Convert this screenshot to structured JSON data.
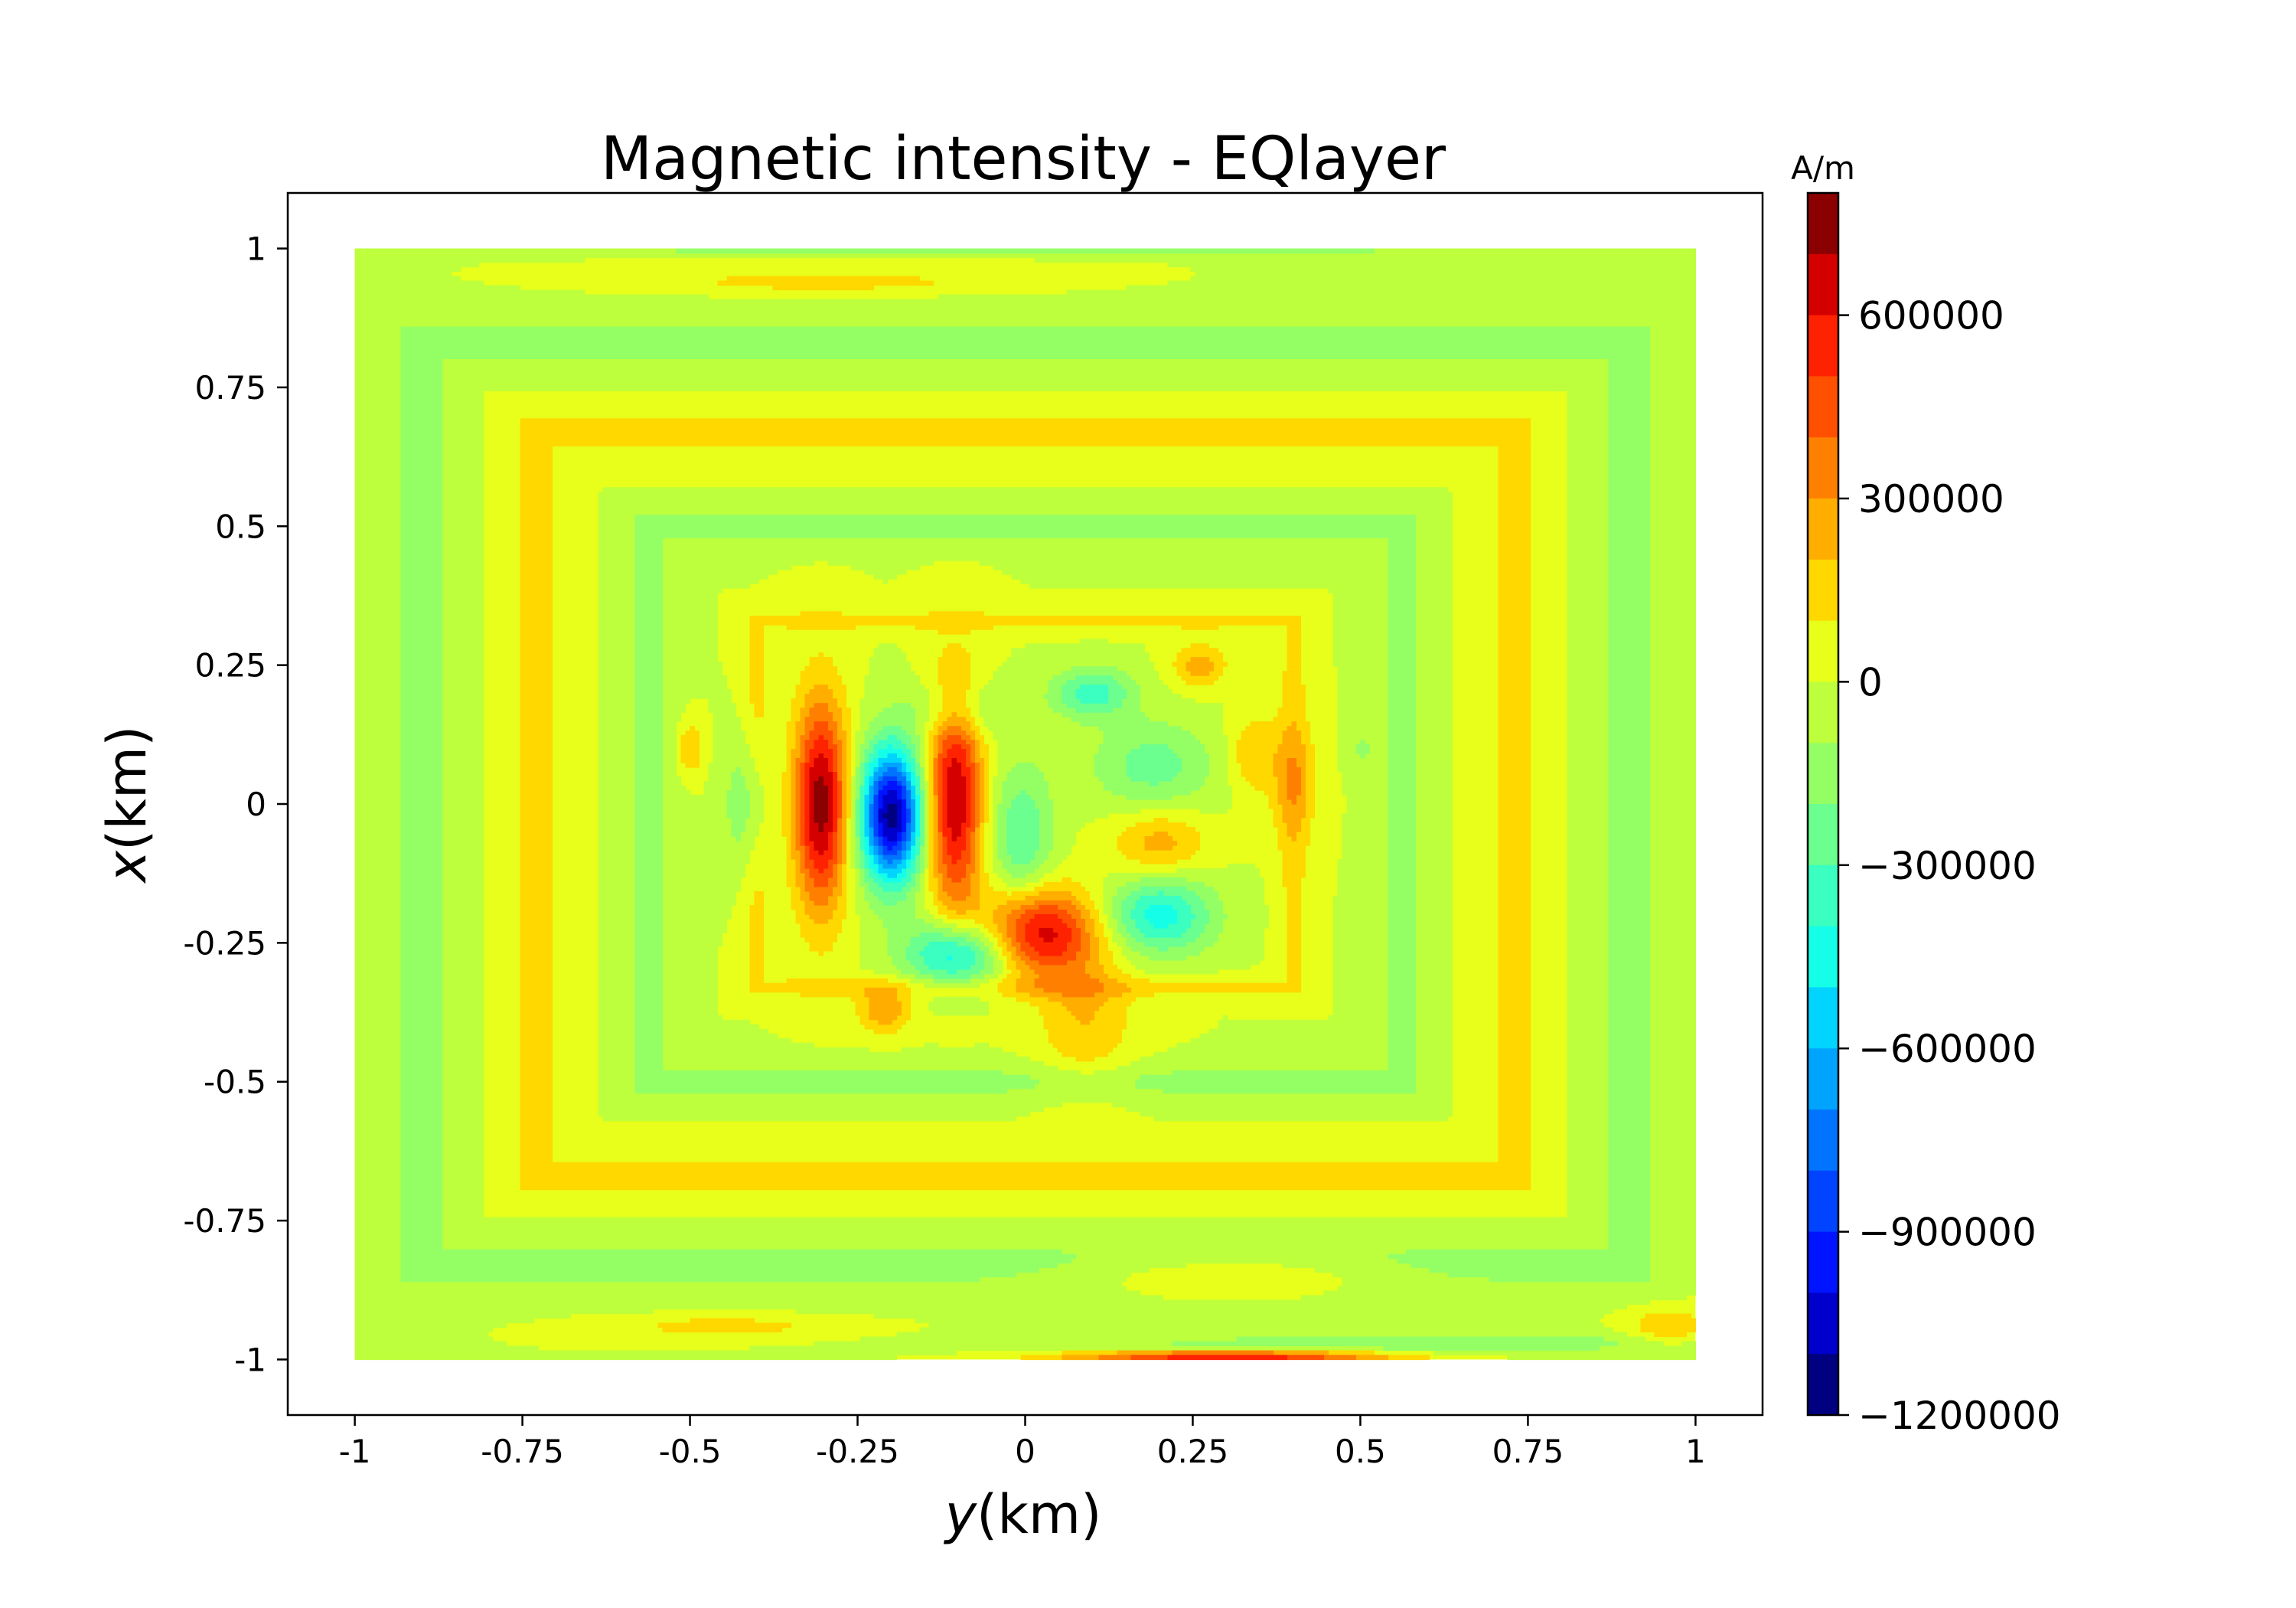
{
  "chart_data": {
    "type": "heatmap",
    "title": "Magnetic intensity - EQlayer",
    "xlabel": {
      "italic": "y",
      "rest": "(km)"
    },
    "ylabel": {
      "italic": "x",
      "rest": "(km)"
    },
    "xlim": [
      -1.1,
      1.1
    ],
    "ylim": [
      -1.1,
      1.1
    ],
    "x_ticks": [
      -1,
      -0.75,
      -0.5,
      -0.25,
      0,
      0.25,
      0.5,
      0.75,
      1
    ],
    "x_tick_labels": [
      "-1",
      "-0.75",
      "-0.5",
      "-0.25",
      "0",
      "0.25",
      "0.5",
      "0.75",
      "1"
    ],
    "y_ticks": [
      1,
      0.75,
      0.5,
      0.25,
      0,
      -0.25,
      -0.5,
      -0.75,
      -1
    ],
    "y_tick_labels": [
      "1",
      "0.75",
      "0.5",
      "0.25",
      "0",
      "-0.25",
      "-0.5",
      "-0.75",
      "-1"
    ],
    "data_extent": {
      "y": [
        -1,
        1
      ],
      "x": [
        -1,
        1
      ]
    },
    "background_level": 0,
    "colorbar": {
      "unit": "A/m",
      "range": [
        -1200000,
        800000
      ],
      "tick_values": [
        600000,
        300000,
        0,
        -300000,
        -600000,
        -900000,
        -1200000
      ],
      "tick_labels": [
        "600000",
        "300000",
        "0",
        "−300000",
        "−600000",
        "−900000",
        "−1200000"
      ],
      "levels": [
        {
          "from": 700000,
          "to": 800000,
          "color": "#8b0000"
        },
        {
          "from": 600000,
          "to": 700000,
          "color": "#d40000"
        },
        {
          "from": 500000,
          "to": 600000,
          "color": "#ff2200"
        },
        {
          "from": 400000,
          "to": 500000,
          "color": "#ff5000"
        },
        {
          "from": 300000,
          "to": 400000,
          "color": "#ff8000"
        },
        {
          "from": 200000,
          "to": 300000,
          "color": "#ffae00"
        },
        {
          "from": 100000,
          "to": 200000,
          "color": "#ffd800"
        },
        {
          "from": 0,
          "to": 100000,
          "color": "#e7ff1a"
        },
        {
          "from": -100000,
          "to": 0,
          "color": "#bdff3c"
        },
        {
          "from": -200000,
          "to": -100000,
          "color": "#94ff65"
        },
        {
          "from": -300000,
          "to": -200000,
          "color": "#6aff8e"
        },
        {
          "from": -400000,
          "to": -300000,
          "color": "#3affc0"
        },
        {
          "from": -500000,
          "to": -400000,
          "color": "#15ffe8"
        },
        {
          "from": -600000,
          "to": -500000,
          "color": "#00d4ff"
        },
        {
          "from": -700000,
          "to": -600000,
          "color": "#00a4ff"
        },
        {
          "from": -800000,
          "to": -700000,
          "color": "#0074ff"
        },
        {
          "from": -900000,
          "to": -800000,
          "color": "#0044ff"
        },
        {
          "from": -1000000,
          "to": -900000,
          "color": "#0014ff"
        },
        {
          "from": -1100000,
          "to": -1000000,
          "color": "#0000cd"
        },
        {
          "from": -1200000,
          "to": -1100000,
          "color": "#000080"
        }
      ]
    },
    "anomalies": [
      {
        "y": -0.305,
        "x": 0.0,
        "ry": 0.04,
        "rx": 0.19,
        "value": 750000
      },
      {
        "y": -0.2,
        "x": -0.02,
        "ry": 0.045,
        "rx": 0.12,
        "value": -1150000
      },
      {
        "y": -0.105,
        "x": 0.01,
        "ry": 0.04,
        "rx": 0.2,
        "value": 700000
      },
      {
        "y": -0.005,
        "x": -0.06,
        "ry": 0.045,
        "rx": 0.13,
        "value": -300000
      },
      {
        "y": 0.02,
        "x": -0.23,
        "ry": 0.085,
        "rx": 0.08,
        "value": 650000
      },
      {
        "y": -0.1,
        "x": -0.27,
        "ry": 0.075,
        "rx": 0.06,
        "value": -550000
      },
      {
        "y": 0.2,
        "x": -0.2,
        "ry": 0.08,
        "rx": 0.07,
        "value": -450000
      },
      {
        "y": 0.1,
        "x": 0.2,
        "ry": 0.06,
        "rx": 0.045,
        "value": -350000
      },
      {
        "y": -0.1,
        "x": 0.17,
        "ry": 0.07,
        "rx": 0.05,
        "value": -200000
      },
      {
        "y": -0.415,
        "x": 0.0,
        "ry": 0.035,
        "rx": 0.12,
        "value": -200000
      },
      {
        "y": 0.19,
        "x": 0.07,
        "ry": 0.09,
        "rx": 0.08,
        "value": -250000
      },
      {
        "y": 0.2,
        "x": -0.07,
        "ry": 0.07,
        "rx": 0.06,
        "value": 250000
      },
      {
        "y": 0.09,
        "x": -0.38,
        "ry": 0.07,
        "rx": 0.13,
        "value": 200000
      },
      {
        "y": 0.26,
        "x": 0.25,
        "ry": 0.04,
        "rx": 0.04,
        "value": 250000
      },
      {
        "y": 0.34,
        "x": 0.09,
        "ry": 0.035,
        "rx": 0.07,
        "value": 200000
      },
      {
        "y": 0.4,
        "x": 0.04,
        "ry": 0.035,
        "rx": 0.1,
        "value": 200000
      },
      {
        "y": -0.21,
        "x": -0.37,
        "ry": 0.04,
        "rx": 0.04,
        "value": 300000
      },
      {
        "y": 0.31,
        "x": -0.85,
        "ry": 0.21,
        "rx": 0.035,
        "value": 200000
      },
      {
        "y": -0.45,
        "x": -0.94,
        "ry": 0.17,
        "rx": 0.02,
        "value": 150000
      },
      {
        "y": -0.3,
        "x": 0.94,
        "ry": 0.27,
        "rx": 0.02,
        "value": 150000
      },
      {
        "y": 0.3,
        "x": -0.995,
        "ry": 0.25,
        "rx": 0.012,
        "value": 650000
      },
      {
        "y": 0.25,
        "x": -0.98,
        "ry": 0.35,
        "rx": 0.025,
        "value": -100000
      },
      {
        "y": 0.7,
        "x": -0.97,
        "ry": 0.35,
        "rx": 0.02,
        "value": -150000
      },
      {
        "y": 0.96,
        "x": -0.94,
        "ry": 0.06,
        "rx": 0.035,
        "value": 200000
      },
      {
        "y": 0.0,
        "x": 0.998,
        "ry": 0.9,
        "rx": 0.008,
        "value": -150000
      },
      {
        "y": -0.5,
        "x": 0.1,
        "ry": 0.02,
        "rx": 0.05,
        "value": 200000
      },
      {
        "y": 0.5,
        "x": 0.1,
        "ry": 0.02,
        "rx": 0.04,
        "value": -100000
      }
    ],
    "ripples": [
      {
        "rx": 0.4,
        "ry": 0.33,
        "half_width": 0.03,
        "sign": 1
      },
      {
        "rx": 0.56,
        "ry": 0.5,
        "half_width": 0.035,
        "sign": -1
      },
      {
        "rx": 0.73,
        "ry": 0.67,
        "half_width": 0.035,
        "sign": 1
      },
      {
        "rx": 0.9,
        "ry": 0.83,
        "half_width": 0.035,
        "sign": -1
      }
    ]
  }
}
